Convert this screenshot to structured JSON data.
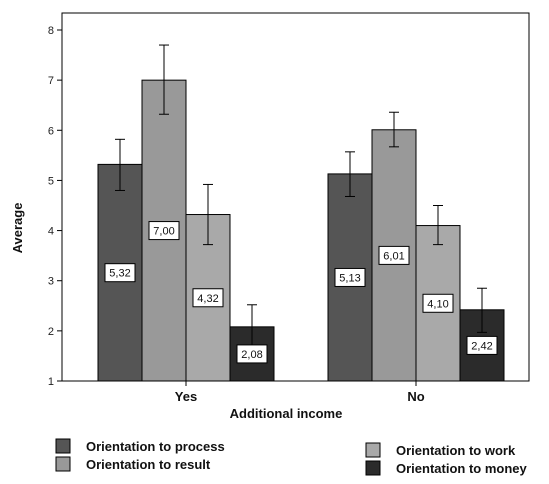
{
  "chart_data": {
    "type": "bar",
    "xlabel": "Additional income",
    "ylabel": "Average",
    "ylim": [
      1,
      8
    ],
    "yticks": [
      1,
      2,
      3,
      4,
      5,
      6,
      7,
      8
    ],
    "categories": [
      "Yes",
      "No"
    ],
    "legend_position": "bottom",
    "grid": false,
    "error_bars": true,
    "series": [
      {
        "name": "Orientation to process",
        "color": "#555555",
        "values": [
          5.32,
          5.13
        ],
        "labels": [
          "5,32",
          "5,13"
        ],
        "error_low": [
          4.8,
          4.68
        ],
        "error_high": [
          5.82,
          5.57
        ]
      },
      {
        "name": "Orientation to result",
        "color": "#999999",
        "values": [
          7.0,
          6.01
        ],
        "labels": [
          "7,00",
          "6,01"
        ],
        "error_low": [
          6.32,
          5.67
        ],
        "error_high": [
          7.7,
          6.36
        ]
      },
      {
        "name": "Orientation to work",
        "color": "#a9a9a9",
        "values": [
          4.32,
          4.1
        ],
        "labels": [
          "4,32",
          "4,10"
        ],
        "error_low": [
          3.72,
          3.72
        ],
        "error_high": [
          4.92,
          4.5
        ]
      },
      {
        "name": "Orientation to money",
        "color": "#2b2b2b",
        "values": [
          2.08,
          2.42
        ],
        "labels": [
          "2,08",
          "2,42"
        ],
        "error_low": [
          1.62,
          1.97
        ],
        "error_high": [
          2.52,
          2.85
        ]
      }
    ]
  }
}
